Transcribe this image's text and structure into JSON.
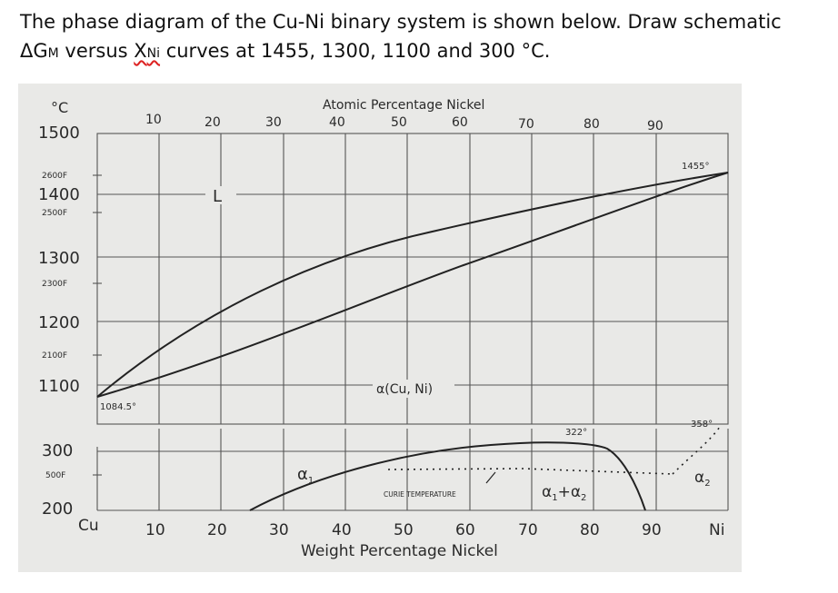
{
  "question": {
    "line1": "The phase diagram of the Cu-Ni binary system is shown below. Draw schematic",
    "delta": "ΔG",
    "sub_m": "M",
    "versus": " versus ",
    "x": "X",
    "sub_ni": "Ni",
    "rest": " curves at 1455, 1300, 1100 and 300 °C."
  },
  "diagram": {
    "top_axis_title": "Atomic Percentage Nickel",
    "top_ticks": [
      "10",
      "20",
      "30",
      "40",
      "50",
      "60",
      "70",
      "80",
      "90"
    ],
    "bottom_ticks": [
      "Cu",
      "10",
      "20",
      "30",
      "40",
      "50",
      "60",
      "70",
      "80",
      "90",
      "Ni"
    ],
    "bottom_axis_title": "Weight Percentage Nickel",
    "y_unit": "°C",
    "y_ticks": [
      "1500",
      "1400",
      "1300",
      "1200",
      "1100",
      "300",
      "200"
    ],
    "f_ticks": [
      "2600F",
      "2500F",
      "2300F",
      "2100F",
      "500F"
    ],
    "labels": {
      "liquid": "L",
      "alpha": "α(Cu, Ni)",
      "cu_melt": "1084.5°",
      "ni_melt": "1455°",
      "max_miscibility": "322°",
      "ni_curie": "358°",
      "alpha1": "α",
      "alpha1_sub": "1",
      "alpha2": "α",
      "alpha2_sub": "2",
      "two_phase": "α",
      "two_phase_sub1": "1",
      "two_phase_plus": "+α",
      "two_phase_sub2": "2",
      "curie": "CURIE TEMPERATURE"
    }
  }
}
